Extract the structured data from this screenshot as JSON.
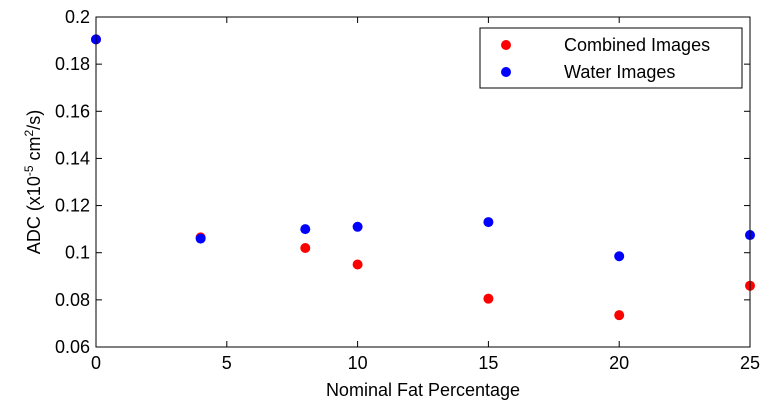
{
  "chart_data": {
    "type": "scatter",
    "title": "",
    "xlabel": "Nominal Fat Percentage",
    "ylabel": {
      "prefix": "ADC (x10",
      "exp1": "-5",
      "mid": " cm",
      "exp2": "2",
      "suffix": "/s)"
    },
    "xlim": [
      0,
      25
    ],
    "ylim": [
      0.06,
      0.2
    ],
    "xticks": [
      0,
      5,
      10,
      15,
      20,
      25
    ],
    "yticks": [
      0.06,
      0.08,
      0.1,
      0.12,
      0.14,
      0.16,
      0.18,
      0.2
    ],
    "ytick_labels": [
      "0.06",
      "0.08",
      "0.1",
      "0.12",
      "0.14",
      "0.16",
      "0.18",
      "0.2"
    ],
    "grid": false,
    "legend_position": "top-right",
    "series": [
      {
        "name": "Combined Images",
        "color": "#ff0000",
        "points": [
          {
            "x": 0,
            "y": 0.1905
          },
          {
            "x": 4,
            "y": 0.1065
          },
          {
            "x": 8,
            "y": 0.102
          },
          {
            "x": 10,
            "y": 0.095
          },
          {
            "x": 15,
            "y": 0.0805
          },
          {
            "x": 20,
            "y": 0.0735
          },
          {
            "x": 25,
            "y": 0.086
          }
        ]
      },
      {
        "name": "Water Images",
        "color": "#0000ff",
        "points": [
          {
            "x": 0,
            "y": 0.1905
          },
          {
            "x": 4,
            "y": 0.106
          },
          {
            "x": 8,
            "y": 0.11
          },
          {
            "x": 10,
            "y": 0.111
          },
          {
            "x": 15,
            "y": 0.113
          },
          {
            "x": 20,
            "y": 0.0985
          },
          {
            "x": 25,
            "y": 0.1075
          }
        ]
      }
    ]
  }
}
